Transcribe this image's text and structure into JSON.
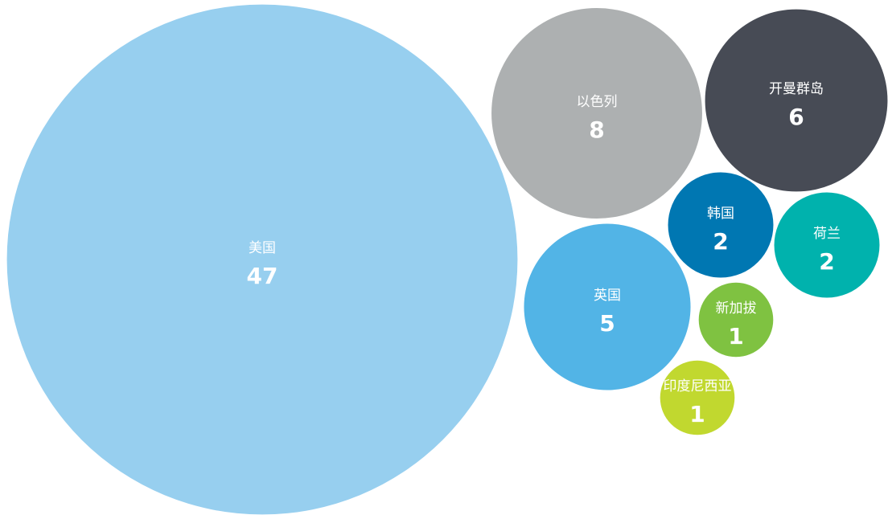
{
  "chart_data": {
    "type": "packed-bubble",
    "categories": [
      "美国",
      "以色列",
      "开曼群岛",
      "韩国",
      "荷兰",
      "英国",
      "新加拔",
      "印度尼西亚"
    ],
    "values": [
      47,
      8,
      6,
      2,
      2,
      5,
      1,
      1
    ],
    "colors": [
      "#97cfef",
      "#adb0b1",
      "#474b55",
      "#0077b2",
      "#00b2ad",
      "#52b4e6",
      "#7fc241",
      "#c1d82f"
    ]
  }
}
